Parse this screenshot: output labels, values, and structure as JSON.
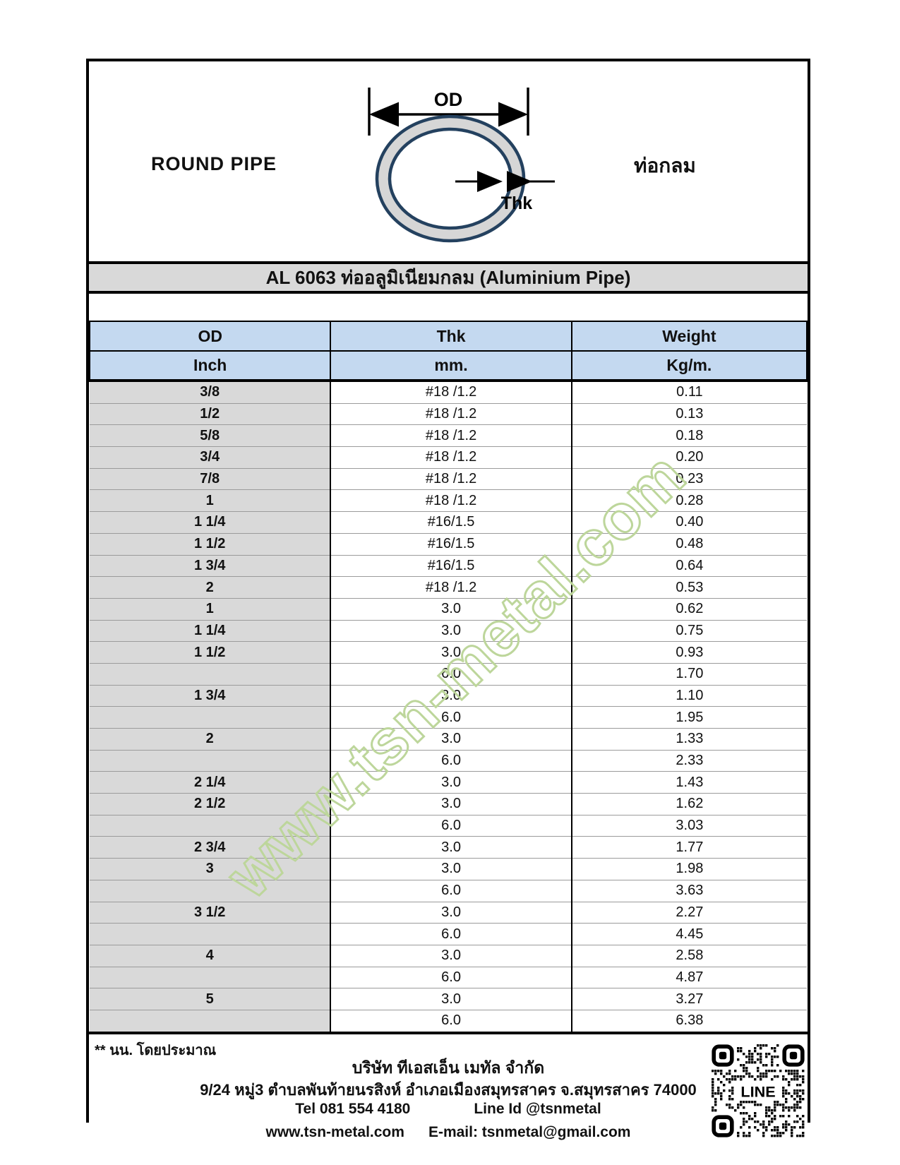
{
  "diagram": {
    "left_label": "ROUND PIPE",
    "right_label": "ท่อกลม",
    "od_label": "OD",
    "thk_label": "Thk"
  },
  "title": "AL 6063 ท่ออลูมิเนียมกลม (Aluminium Pipe)",
  "table": {
    "headers": {
      "od": "OD",
      "thk": "Thk",
      "weight": "Weight"
    },
    "units": {
      "od": "Inch",
      "thk": "mm.",
      "weight": "Kg/m."
    },
    "rows": [
      [
        "3/8",
        "#18 /1.2",
        "0.11"
      ],
      [
        "1/2",
        "#18 /1.2",
        "0.13"
      ],
      [
        "5/8",
        "#18 /1.2",
        "0.18"
      ],
      [
        "3/4",
        "#18 /1.2",
        "0.20"
      ],
      [
        "7/8",
        "#18 /1.2",
        "0.23"
      ],
      [
        "1",
        "#18 /1.2",
        "0.28"
      ],
      [
        "1 1/4",
        "#16/1.5",
        "0.40"
      ],
      [
        "1 1/2",
        "#16/1.5",
        "0.48"
      ],
      [
        "1 3/4",
        "#16/1.5",
        "0.64"
      ],
      [
        "2",
        "#18 /1.2",
        "0.53"
      ],
      [
        "1",
        "3.0",
        "0.62"
      ],
      [
        "1 1/4",
        "3.0",
        "0.75"
      ],
      [
        "1 1/2",
        "3.0",
        "0.93"
      ],
      [
        "",
        "6.0",
        "1.70"
      ],
      [
        "1 3/4",
        "3.0",
        "1.10"
      ],
      [
        "",
        "6.0",
        "1.95"
      ],
      [
        "2",
        "3.0",
        "1.33"
      ],
      [
        "",
        "6.0",
        "2.33"
      ],
      [
        "2 1/4",
        "3.0",
        "1.43"
      ],
      [
        "2 1/2",
        "3.0",
        "1.62"
      ],
      [
        "",
        "6.0",
        "3.03"
      ],
      [
        "2 3/4",
        "3.0",
        "1.77"
      ],
      [
        "3",
        "3.0",
        "1.98"
      ],
      [
        "",
        "6.0",
        "3.63"
      ],
      [
        "3 1/2",
        "3.0",
        "2.27"
      ],
      [
        "",
        "6.0",
        "4.45"
      ],
      [
        "4",
        "3.0",
        "2.58"
      ],
      [
        "",
        "6.0",
        "4.87"
      ],
      [
        "5",
        "3.0",
        "3.27"
      ],
      [
        "",
        "6.0",
        "6.38"
      ]
    ]
  },
  "watermark": "www.tsn-metal.com",
  "footer": {
    "note": "** นน. โดยประมาณ",
    "company": "บริษัท ทีเอสเอ็น เมทัล จำกัด",
    "address": "9/24 หมู่3 ตำบลพันท้ายนรสิงห์ อำเภอเมืองสมุทรสาคร จ.สมุทรสาคร 74000",
    "tel": "Tel 081 554 4180",
    "line_id": "Line Id  @tsnmetal",
    "website": "www.tsn-metal.com",
    "email": "E-mail: tsnmetal@gmail.com",
    "qr_label": "LINE"
  },
  "colors": {
    "header_blue": "#c4d9f0",
    "panel_gray": "#d9d9d9",
    "pipe_navy": "#24415f",
    "pipe_fill_gray": "#d6d6d6",
    "watermark_green": "#bdd69b"
  }
}
